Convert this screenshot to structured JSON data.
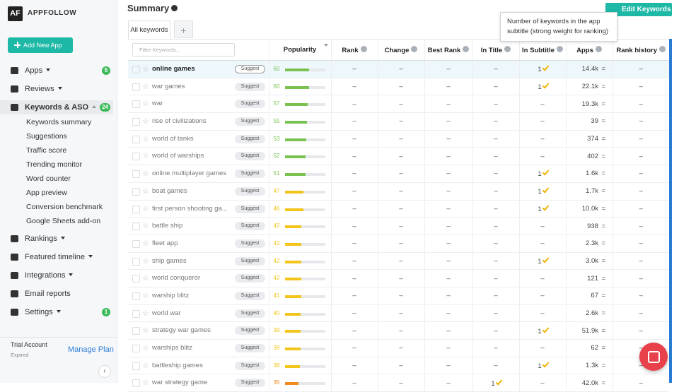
{
  "sidebar": {
    "logo": "AF",
    "brand": "APPFOLLOW",
    "add_button": "Add New App",
    "nav": {
      "apps": "Apps",
      "apps_badge": 5,
      "reviews": "Reviews",
      "keywords": "Keywords & ASO",
      "keywords_badge": 24,
      "rankings": "Rankings",
      "featured": "Featured timeline",
      "integrations": "Integrations",
      "email": "Email reports",
      "settings": "Settings",
      "settings_badge": 1
    },
    "subnav": [
      "Keywords summary",
      "Suggestions",
      "Traffic score",
      "Trending monitor",
      "Word counter",
      "App preview",
      "Conversion benchmark",
      "Google Sheets add-on"
    ],
    "footer": {
      "account": "Trial Account",
      "status": "Expired",
      "link": "Manage Plan"
    }
  },
  "main": {
    "title": "Summary",
    "tabs": [
      "All keywords",
      "+"
    ],
    "edit_button": "Edit Keywords",
    "tooltip": "Number of keywords in the app subtitle (strong weight for ranking)",
    "filter_placeholder": "Filter Keywords...",
    "columns": [
      "Popularity",
      "Rank",
      "Change",
      "Best Rank",
      "In Title",
      "In Subtitle",
      "Apps",
      "Rank history"
    ],
    "rows": [
      [
        "online games",
        "Suggest",
        60,
        "–",
        "–",
        "–",
        "–",
        1,
        "14.4k",
        "=",
        "–"
      ],
      [
        "war games",
        "Suggest",
        60,
        "–",
        "–",
        "–",
        "–",
        1,
        "22.1k",
        "=",
        "–"
      ],
      [
        "war",
        "Suggest",
        57,
        "–",
        "–",
        "–",
        "–",
        "–",
        "19.3k",
        "=",
        "–"
      ],
      [
        "rise of civilizations",
        "Suggest",
        55,
        "–",
        "–",
        "–",
        "–",
        "–",
        "39",
        "=",
        "–"
      ],
      [
        "world of tanks",
        "Suggest",
        53,
        "–",
        "–",
        "–",
        "–",
        "–",
        "374",
        "=",
        "–"
      ],
      [
        "world of warships",
        "Suggest",
        52,
        "–",
        "–",
        "–",
        "–",
        "–",
        "402",
        "=",
        "–"
      ],
      [
        "online multiplayer games",
        "Suggest",
        51,
        "–",
        "–",
        "–",
        "–",
        1,
        "1.6k",
        "=",
        "–"
      ],
      [
        "boat games",
        "Suggest",
        47,
        "–",
        "–",
        "–",
        "–",
        1,
        "1.7k",
        "=",
        "–"
      ],
      [
        "first person shooting ga...",
        "Suggest",
        46,
        "–",
        "–",
        "–",
        "–",
        1,
        "10.0k",
        "=",
        "–"
      ],
      [
        "battle ship",
        "Suggest",
        42,
        "–",
        "–",
        "–",
        "–",
        "–",
        "938",
        "=",
        "–"
      ],
      [
        "fleet app",
        "Suggest",
        42,
        "–",
        "–",
        "–",
        "–",
        "–",
        "2.3k",
        "=",
        "–"
      ],
      [
        "ship games",
        "Suggest",
        42,
        "–",
        "–",
        "–",
        "–",
        1,
        "3.0k",
        "=",
        "–"
      ],
      [
        "world conqueror",
        "Suggest",
        42,
        "–",
        "–",
        "–",
        "–",
        "–",
        "121",
        "=",
        "–"
      ],
      [
        "warship blitz",
        "Suggest",
        41,
        "–",
        "–",
        "–",
        "–",
        "–",
        "67",
        "=",
        "–"
      ],
      [
        "world war",
        "Suggest",
        40,
        "–",
        "–",
        "–",
        "–",
        "–",
        "2.6k",
        "=",
        "–"
      ],
      [
        "strategy war games",
        "Suggest",
        39,
        "–",
        "–",
        "–",
        "–",
        1,
        "51.9k",
        "=",
        "–"
      ],
      [
        "warships blitz",
        "Suggest",
        39,
        "–",
        "–",
        "–",
        "–",
        "–",
        "62",
        "=",
        "–"
      ],
      [
        "battleship games",
        "Suggest",
        38,
        "–",
        "–",
        "–",
        "–",
        1,
        "1.3k",
        "=",
        "–"
      ],
      [
        "war strategy game",
        "Suggest",
        35,
        "–",
        "–",
        "–",
        1,
        "–",
        "42.0k",
        "=",
        "–"
      ]
    ]
  }
}
